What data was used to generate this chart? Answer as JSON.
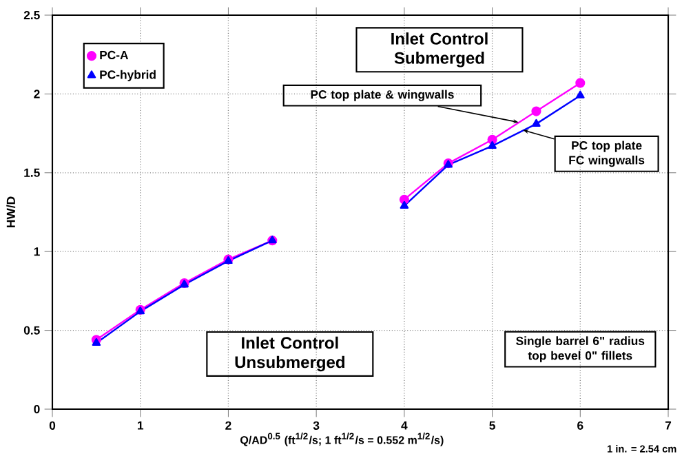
{
  "chart_data": {
    "type": "line",
    "xlabel": "Q/AD$^{0.5}$ (ft$^{1/2}$/s; 1 ft$^{1/2}$/s = 0.552 m$^{1/2}$/s)",
    "ylabel": "HW/D",
    "x": [
      0.5,
      1,
      1.5,
      2,
      2.5,
      3,
      4,
      4.5,
      5,
      5.5,
      6
    ],
    "series": [
      {
        "name": "PC-A",
        "color": "#ff00ff",
        "marker": "circle",
        "values": [
          0.44,
          0.63,
          0.8,
          0.95,
          1.07,
          null,
          1.33,
          1.56,
          1.71,
          1.89,
          2.07
        ]
      },
      {
        "name": "PC-hybrid",
        "color": "#0000ff",
        "marker": "triangle",
        "values": [
          0.42,
          0.62,
          0.79,
          0.94,
          1.07,
          null,
          1.29,
          1.55,
          1.67,
          1.81,
          1.99
        ]
      }
    ],
    "xlim": [
      0,
      7
    ],
    "xticks": [
      0,
      1,
      2,
      3,
      4,
      5,
      6,
      7
    ],
    "ylim": [
      0,
      2.5
    ],
    "yticks": [
      0,
      0.5,
      1,
      1.5,
      2,
      2.5
    ],
    "grid": true,
    "legend": "top left",
    "line_style": "solid",
    "annotations": [
      "Inlet Control Submerged",
      "Inlet Control Unsubmerged",
      "Single barrel 6\" radius top bevel 0\" fillets",
      {
        "text": "PC top plate & wingwalls",
        "x": 5.3,
        "y": 1.82
      },
      {
        "text": "PC top plate FC wingwalls",
        "x": 5.35,
        "y": 1.77
      },
      "1 in. = 2.54 cm"
    ]
  }
}
